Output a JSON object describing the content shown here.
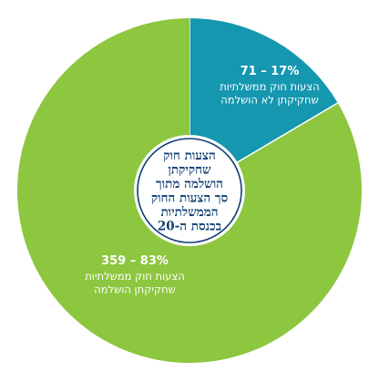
{
  "chart_data": {
    "type": "pie",
    "center_label_lines": [
      "הצעות חוק",
      "שחקיקתן",
      "הושלמה מתוך",
      "סך הצעות החוק",
      "הממשלתיות",
      "בכנסת ה-20"
    ],
    "slices": [
      {
        "value": 71,
        "percent": 17,
        "value_label": "71 – 17%",
        "desc_lines": [
          "הצעות חוק ממשלתיות",
          "שחקיקתן לא הושלמה"
        ],
        "color": "#1597b0"
      },
      {
        "value": 359,
        "percent": 83,
        "value_label": "359 – 83%",
        "desc_lines": [
          "הצעות חוק ממשלתיות",
          "שחקיקתן הושלמה"
        ],
        "color": "#8dc63f"
      }
    ],
    "center_circle_color": "#ffffff",
    "center_border_color": "#0f3f73",
    "divider_color": "#ffffff",
    "background_color": "#ffffff"
  }
}
